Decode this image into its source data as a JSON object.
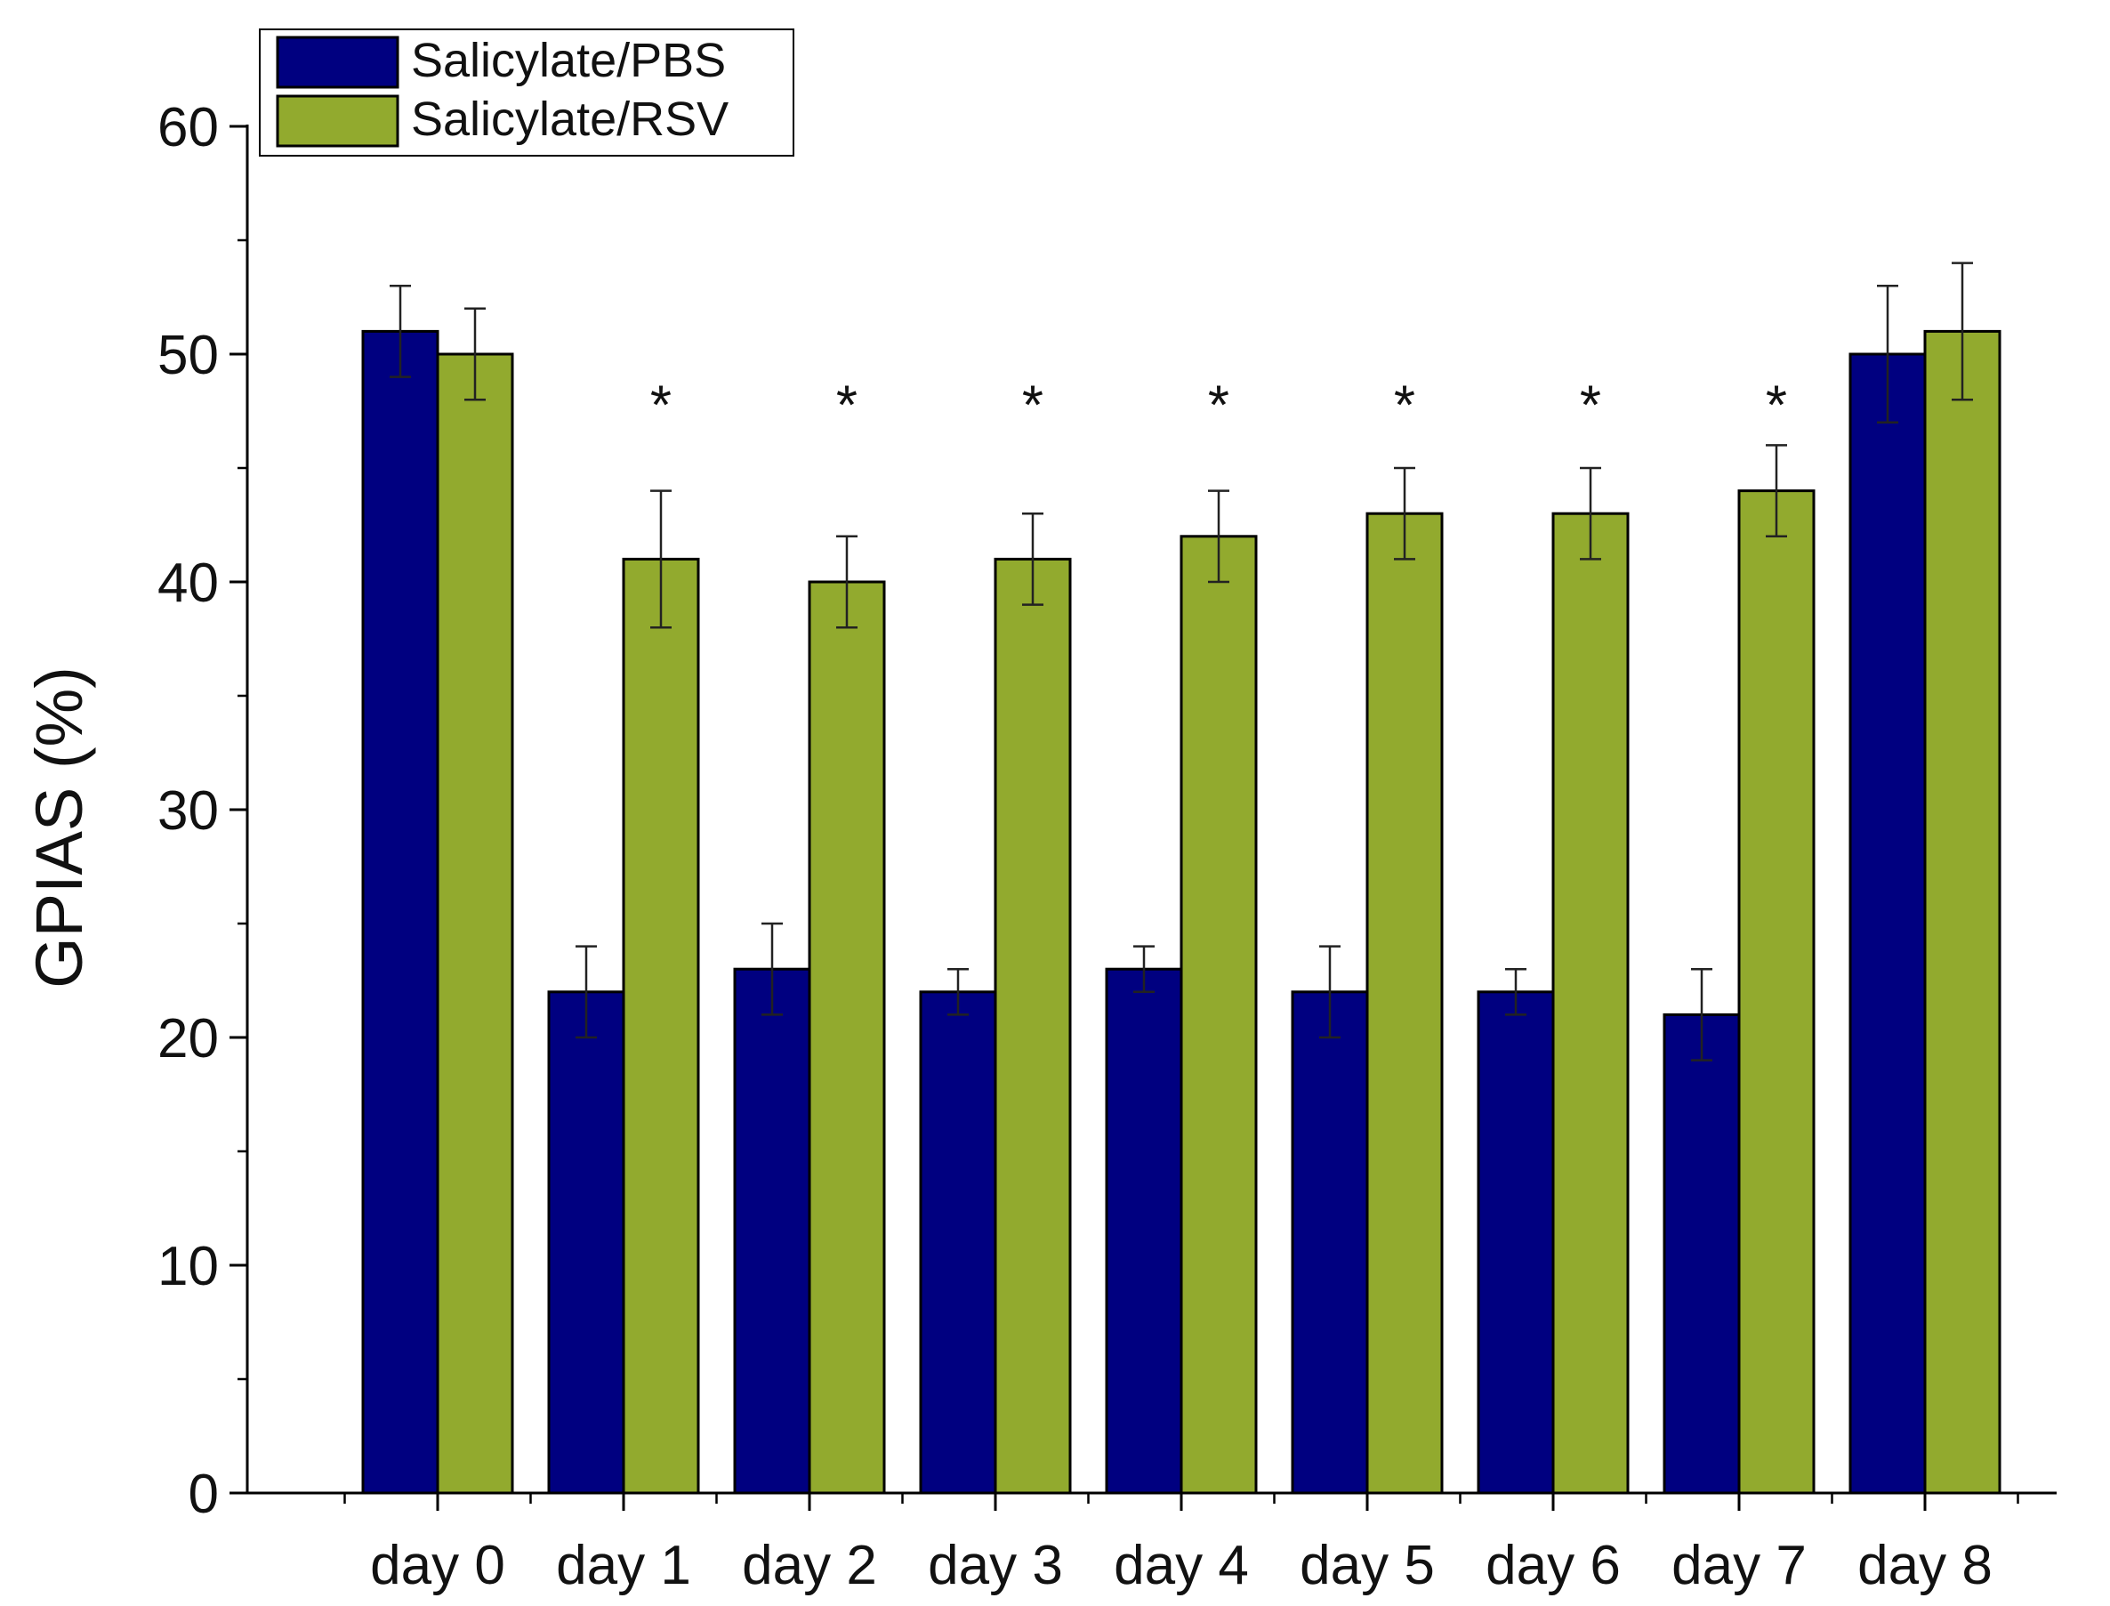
{
  "chart_data": {
    "type": "bar",
    "title": "",
    "xlabel": "",
    "ylabel": "GPIAS (%)",
    "ylim": [
      0,
      60
    ],
    "yticks": [
      0,
      10,
      20,
      30,
      40,
      50,
      60
    ],
    "grid": false,
    "legend_position": "top-left",
    "categories": [
      "day 0",
      "day 1",
      "day 2",
      "day 3",
      "day 4",
      "day 5",
      "day 6",
      "day 7",
      "day 8"
    ],
    "series": [
      {
        "name": "Salicylate/PBS",
        "color": "#000080",
        "values": [
          51,
          22,
          23,
          22,
          23,
          22,
          22,
          21,
          50
        ],
        "errors": [
          2,
          2,
          2,
          1,
          1,
          2,
          1,
          2,
          3
        ]
      },
      {
        "name": "Salicylate/RSV",
        "color": "#92AA2E",
        "values": [
          50,
          41,
          40,
          41,
          42,
          43,
          43,
          44,
          51
        ],
        "errors": [
          2,
          3,
          2,
          2,
          2,
          2,
          2,
          2,
          3
        ]
      }
    ],
    "annotations": {
      "marker": "*",
      "categories": [
        "day 1",
        "day 2",
        "day 3",
        "day 4",
        "day 5",
        "day 6",
        "day 7"
      ],
      "value": 48.5
    }
  }
}
